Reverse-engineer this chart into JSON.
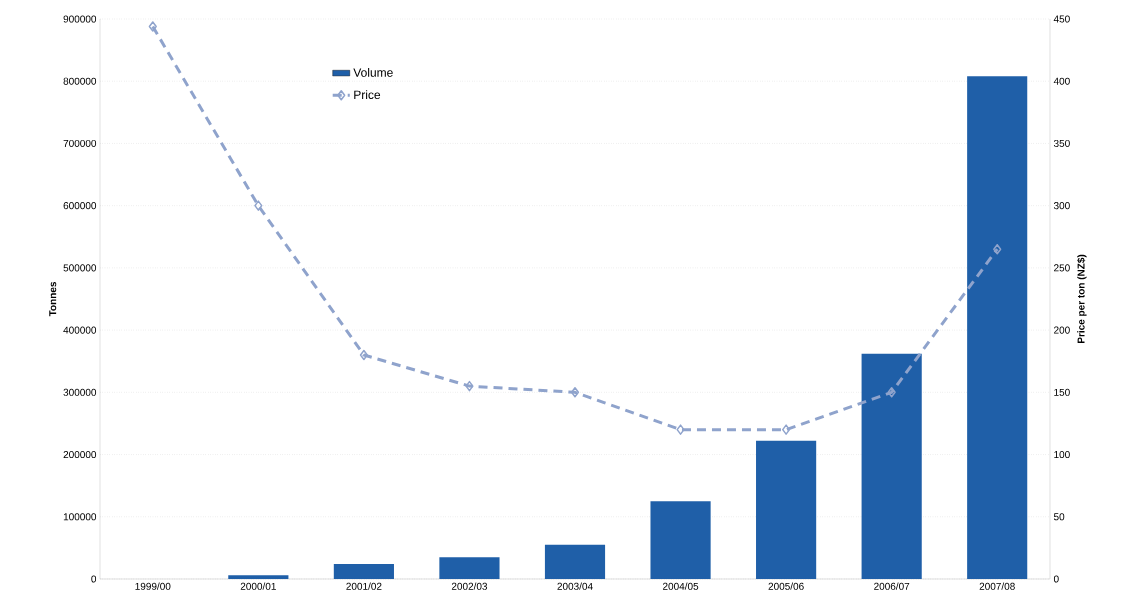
{
  "chart_data": {
    "type": "bar",
    "ylabel": "Tonnes",
    "y2label": "Price per ton (NZ$)",
    "categories": [
      "1999/00",
      "2000/01",
      "2001/02",
      "2002/03",
      "2003/04",
      "2004/05",
      "2005/06",
      "2006/07",
      "2007/08"
    ],
    "series": [
      {
        "name": "Volume",
        "color": "#1f5fa8",
        "values": [
          0,
          6000,
          24000,
          35000,
          55000,
          125000,
          222000,
          362000,
          808000
        ]
      },
      {
        "name": "Price",
        "type": "line",
        "axis": "y2",
        "color": "#8fa3cc",
        "marker": "diamond",
        "line_style": "dashed",
        "values": [
          444,
          300,
          180,
          155,
          150,
          120,
          120,
          150,
          265
        ]
      }
    ],
    "ylim": [
      0,
      900000
    ],
    "yticks": [
      0,
      100000,
      200000,
      300000,
      400000,
      500000,
      600000,
      700000,
      800000,
      900000
    ],
    "y2lim": [
      0,
      450
    ],
    "y2ticks": [
      0,
      50,
      100,
      150,
      200,
      250,
      300,
      350,
      400,
      450
    ],
    "grid": "y",
    "legend": "top left"
  }
}
